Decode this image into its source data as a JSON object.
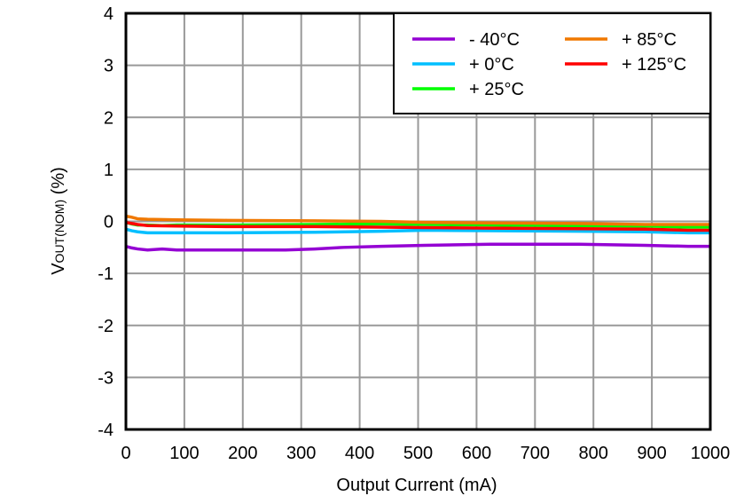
{
  "chart_data": {
    "type": "line",
    "title": "",
    "xlabel": "Output Current (mA)",
    "ylabel_main": "V",
    "ylabel_sub": "OUT(NOM)",
    "ylabel_suffix": " (%)",
    "xlim": [
      0,
      1000
    ],
    "ylim": [
      -4,
      4
    ],
    "xticks": [
      0,
      100,
      200,
      300,
      400,
      500,
      600,
      700,
      800,
      900,
      1000
    ],
    "yticks": [
      -4,
      -3,
      -2,
      -1,
      0,
      1,
      2,
      3,
      4
    ],
    "grid": true,
    "legend_position": "top-right",
    "series": [
      {
        "name": "- 40°C",
        "color": "#9400D3",
        "x": [
          0,
          10,
          20,
          37,
          62,
          87,
          173,
          273,
          323,
          373,
          437,
          511,
          624,
          775,
          888,
          962,
          1000
        ],
        "y": [
          -0.48,
          -0.51,
          -0.53,
          -0.55,
          -0.53,
          -0.55,
          -0.55,
          -0.55,
          -0.53,
          -0.5,
          -0.48,
          -0.46,
          -0.44,
          -0.44,
          -0.46,
          -0.48,
          -0.48
        ]
      },
      {
        "name": "+ 0°C",
        "color": "#00BFFF",
        "x": [
          0,
          10,
          20,
          37,
          87,
          173,
          323,
          437,
          511,
          624,
          775,
          888,
          962,
          1000
        ],
        "y": [
          -0.15,
          -0.18,
          -0.2,
          -0.22,
          -0.22,
          -0.22,
          -0.21,
          -0.19,
          -0.17,
          -0.18,
          -0.19,
          -0.2,
          -0.22,
          -0.22
        ]
      },
      {
        "name": "+ 25°C",
        "color": "#00FF00",
        "x": [
          0,
          10,
          20,
          37,
          62,
          87,
          173,
          323,
          437,
          511,
          624,
          775,
          888,
          962,
          1000
        ],
        "y": [
          -0.02,
          -0.05,
          -0.07,
          -0.07,
          -0.08,
          -0.07,
          -0.07,
          -0.06,
          -0.05,
          -0.06,
          -0.07,
          -0.085,
          -0.09,
          -0.11,
          -0.11
        ]
      },
      {
        "name": "+ 85°C",
        "color": "#F07800",
        "x": [
          0,
          10,
          20,
          37,
          87,
          173,
          323,
          437,
          511,
          624,
          775,
          888,
          962,
          1000
        ],
        "y": [
          0.1,
          0.08,
          0.05,
          0.04,
          0.03,
          0.02,
          0.01,
          0.0,
          -0.02,
          -0.03,
          -0.04,
          -0.06,
          -0.06,
          -0.06
        ]
      },
      {
        "name": "+ 125°C",
        "color": "#FF0000",
        "x": [
          0,
          10,
          20,
          37,
          87,
          173,
          323,
          437,
          511,
          624,
          775,
          888,
          962,
          1000
        ],
        "y": [
          -0.02,
          -0.04,
          -0.06,
          -0.08,
          -0.09,
          -0.1,
          -0.1,
          -0.11,
          -0.12,
          -0.13,
          -0.14,
          -0.15,
          -0.17,
          -0.17
        ]
      }
    ]
  }
}
